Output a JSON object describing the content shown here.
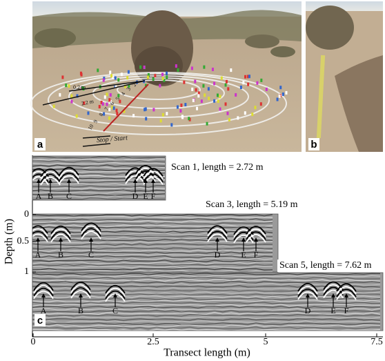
{
  "panel_a": {
    "label": "a",
    "annotations": [
      "0.2 m",
      "2.2 m",
      "Stop / Start",
      "10",
      "9",
      "8",
      "7",
      "6",
      "5",
      "4",
      "3",
      "2"
    ]
  },
  "panel_b": {
    "label": "b"
  },
  "panel_c": {
    "label": "c",
    "y_axis_label": "Depth (m)",
    "x_axis_label": "Transect length (m)",
    "x_tick_labels": [
      "0",
      "2.5",
      "5",
      "7.5"
    ],
    "y_tick_labels": [
      "0",
      "0.5",
      "1"
    ],
    "scans": [
      {
        "title": "Scan 1, length = 2.72 m",
        "markers": [
          "A",
          "B",
          "C",
          "D",
          "E",
          "F"
        ]
      },
      {
        "title": "Scan 3, length = 5.19 m",
        "markers": [
          "A",
          "B",
          "C",
          "D",
          "E",
          "F"
        ]
      },
      {
        "title": "Scan 5, length = 7.62 m",
        "markers": [
          "A",
          "B",
          "C",
          "D",
          "E",
          "F"
        ]
      }
    ]
  }
}
